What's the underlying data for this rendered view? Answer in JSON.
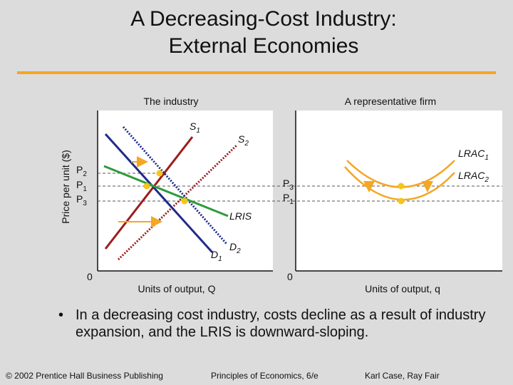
{
  "title": {
    "line1": "A Decreasing-Cost Industry:",
    "line2": "External Economies"
  },
  "left_panel": {
    "title": "The industry",
    "ylabel": "Price per unit ($)",
    "xlabel": "Units of output, Q",
    "origin": "0",
    "price_labels": [
      {
        "main": "P",
        "sub": "2"
      },
      {
        "main": "P",
        "sub": "1"
      },
      {
        "main": "P",
        "sub": "3"
      }
    ],
    "curves": {
      "s1": {
        "main": "S",
        "sub": "1"
      },
      "s2": {
        "main": "S",
        "sub": "2"
      },
      "d1": {
        "main": "D",
        "sub": "1"
      },
      "d2": {
        "main": "D",
        "sub": "2"
      },
      "lris": "LRIS"
    }
  },
  "right_panel": {
    "title": "A representative firm",
    "xlabel": "Units of output, q",
    "origin": "0",
    "price_labels": [
      {
        "main": "P",
        "sub": "3"
      },
      {
        "main": "P",
        "sub": "1"
      }
    ],
    "curves": {
      "lrac1": {
        "main": "LRAC",
        "sub": "1"
      },
      "lrac2": {
        "main": "LRAC",
        "sub": "2"
      }
    }
  },
  "colors": {
    "supply": "#9b1c1c",
    "demand": "#1f2a8a",
    "lris": "#2e9b3a",
    "cost_curves": "#f5a623",
    "points": "#f5c518",
    "accent_rule": "#f5a623"
  },
  "bullet": {
    "symbol": "•",
    "text": "In a decreasing cost industry, costs decline as a result of industry expansion, and the LRIS is downward-sloping."
  },
  "footer": {
    "left": "© 2002 Prentice Hall Business Publishing",
    "center": "Principles of Economics, 6/e",
    "right": "Karl Case, Ray Fair"
  }
}
